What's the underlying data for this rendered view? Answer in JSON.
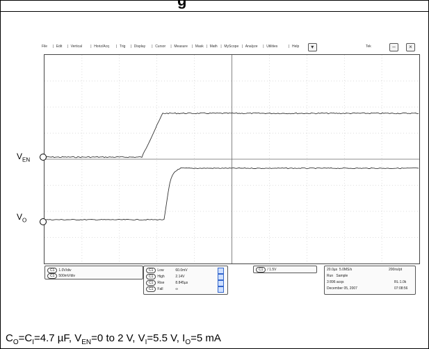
{
  "header": {
    "partial_title": "g"
  },
  "menu": {
    "items": [
      "File",
      "Edit",
      "Vertical",
      "Horiz/Acq",
      "Trig",
      "Display",
      "Cursor",
      "Measure",
      "Mask",
      "Math",
      "MyScope",
      "Analyze",
      "Utilities",
      "Help"
    ],
    "right_label": "Tek"
  },
  "markers": {
    "ven": {
      "label": "V",
      "sub": "EN"
    },
    "vo": {
      "label": "V",
      "sub": "O"
    }
  },
  "readouts": {
    "channels": [
      {
        "chip": "C1",
        "text": "1.0V/div"
      },
      {
        "chip": "C1",
        "text": "500mV/div"
      }
    ],
    "measurements": [
      {
        "chip": "C1",
        "name": "Low",
        "value": "60.0mV"
      },
      {
        "chip": "C1",
        "name": "High",
        "value": "2.14V"
      },
      {
        "chip": "C1",
        "name": "Rise",
        "value": "8.845µs"
      },
      {
        "chip": "C1",
        "name": "Fall",
        "value": "∞"
      }
    ],
    "trigger": {
      "chip": "C1",
      "text": "/ 1.5V"
    },
    "timebase": {
      "row1": [
        "20.0µs",
        "5.0MS/s",
        "200ns/pt"
      ],
      "row2": [
        "Run",
        "Sample"
      ],
      "row3": [
        "3 896 acqs",
        "RL:1.0k"
      ],
      "row4": [
        "December 05, 2007",
        "07:08:56"
      ]
    }
  },
  "caption": {
    "parts": [
      {
        "t": "C"
      },
      {
        "s": "O"
      },
      {
        "t": "=C"
      },
      {
        "s": "I"
      },
      {
        "t": "=4.7 µF, V"
      },
      {
        "s": "EN"
      },
      {
        "t": "=0 to 2 V, V"
      },
      {
        "s": "I"
      },
      {
        "t": "=5.5 V, I"
      },
      {
        "s": "O"
      },
      {
        "t": "=5 mA"
      }
    ]
  }
}
